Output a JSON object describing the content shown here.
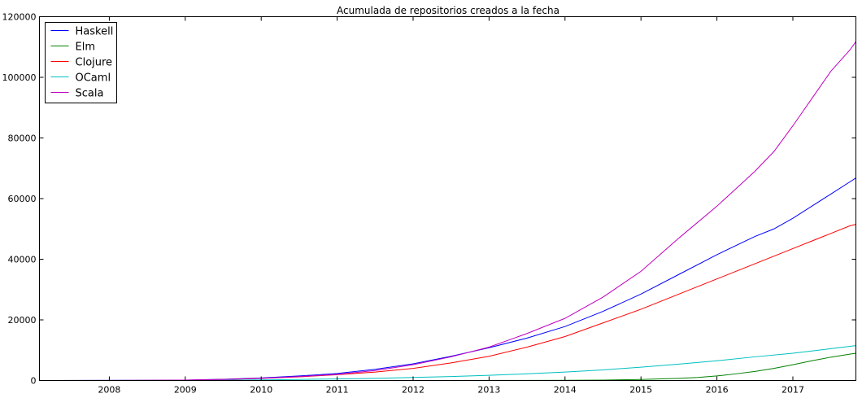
{
  "chart_data": {
    "type": "line",
    "title": "Acumulada de repositorios creados a la fecha",
    "xlabel": "",
    "ylabel": "",
    "xlim": [
      2007.08,
      2017.83
    ],
    "ylim": [
      0,
      120000
    ],
    "x_ticks": [
      "2008",
      "2009",
      "2010",
      "2011",
      "2012",
      "2013",
      "2014",
      "2015",
      "2016",
      "2017"
    ],
    "y_ticks": [
      "0",
      "20000",
      "40000",
      "60000",
      "80000",
      "100000",
      "120000"
    ],
    "grid": false,
    "legend_position": "top-left",
    "series": [
      {
        "name": "Haskell",
        "color": "#0000ff",
        "x": [
          2007.08,
          2008.0,
          2008.5,
          2009.0,
          2009.5,
          2010.0,
          2010.5,
          2011.0,
          2011.5,
          2012.0,
          2012.5,
          2013.0,
          2013.5,
          2014.0,
          2014.5,
          2015.0,
          2015.5,
          2016.0,
          2016.5,
          2016.75,
          2017.0,
          2017.25,
          2017.5,
          2017.75,
          2017.83
        ],
        "y": [
          0,
          30,
          70,
          150,
          400,
          850,
          1500,
          2300,
          3700,
          5500,
          8000,
          10800,
          14000,
          17800,
          22800,
          28500,
          35000,
          41500,
          47500,
          50000,
          53500,
          57500,
          61500,
          65500,
          66800
        ]
      },
      {
        "name": "Elm",
        "color": "#008000",
        "x": [
          2007.08,
          2012.0,
          2013.0,
          2014.0,
          2014.5,
          2015.0,
          2015.5,
          2015.75,
          2016.0,
          2016.25,
          2016.5,
          2016.75,
          2017.0,
          2017.25,
          2017.5,
          2017.75,
          2017.83
        ],
        "y": [
          0,
          0,
          20,
          80,
          150,
          350,
          700,
          1000,
          1500,
          2200,
          3000,
          4000,
          5200,
          6500,
          7700,
          8700,
          9000
        ]
      },
      {
        "name": "Clojure",
        "color": "#ff0000",
        "x": [
          2007.08,
          2008.0,
          2008.5,
          2009.0,
          2009.5,
          2010.0,
          2010.5,
          2011.0,
          2011.5,
          2012.0,
          2012.5,
          2013.0,
          2013.5,
          2014.0,
          2014.5,
          2015.0,
          2015.5,
          2016.0,
          2016.5,
          2017.0,
          2017.25,
          2017.5,
          2017.75,
          2017.83
        ],
        "y": [
          0,
          10,
          30,
          100,
          350,
          700,
          1200,
          1900,
          2800,
          4000,
          5800,
          8000,
          11000,
          14500,
          19000,
          23500,
          28500,
          33500,
          38500,
          43500,
          46000,
          48500,
          51000,
          51500
        ]
      },
      {
        "name": "OCaml",
        "color": "#00bfbf",
        "x": [
          2007.08,
          2008.0,
          2009.0,
          2010.0,
          2010.5,
          2011.0,
          2011.5,
          2012.0,
          2012.5,
          2013.0,
          2013.5,
          2014.0,
          2014.5,
          2015.0,
          2015.5,
          2016.0,
          2016.5,
          2017.0,
          2017.5,
          2017.83
        ],
        "y": [
          0,
          20,
          80,
          200,
          350,
          500,
          700,
          1000,
          1300,
          1700,
          2200,
          2800,
          3500,
          4400,
          5400,
          6500,
          7800,
          9000,
          10500,
          11500
        ]
      },
      {
        "name": "Scala",
        "color": "#bf00bf",
        "x": [
          2007.08,
          2008.0,
          2008.5,
          2009.0,
          2009.5,
          2010.0,
          2010.5,
          2011.0,
          2011.5,
          2012.0,
          2012.5,
          2013.0,
          2013.5,
          2014.0,
          2014.5,
          2015.0,
          2015.5,
          2016.0,
          2016.5,
          2016.75,
          2017.0,
          2017.25,
          2017.5,
          2017.75,
          2017.83
        ],
        "y": [
          0,
          20,
          60,
          130,
          350,
          700,
          1300,
          2000,
          3300,
          5200,
          7800,
          11000,
          15500,
          20500,
          27500,
          36000,
          47000,
          57500,
          69000,
          75500,
          84000,
          93000,
          102000,
          109000,
          111800
        ]
      }
    ]
  }
}
